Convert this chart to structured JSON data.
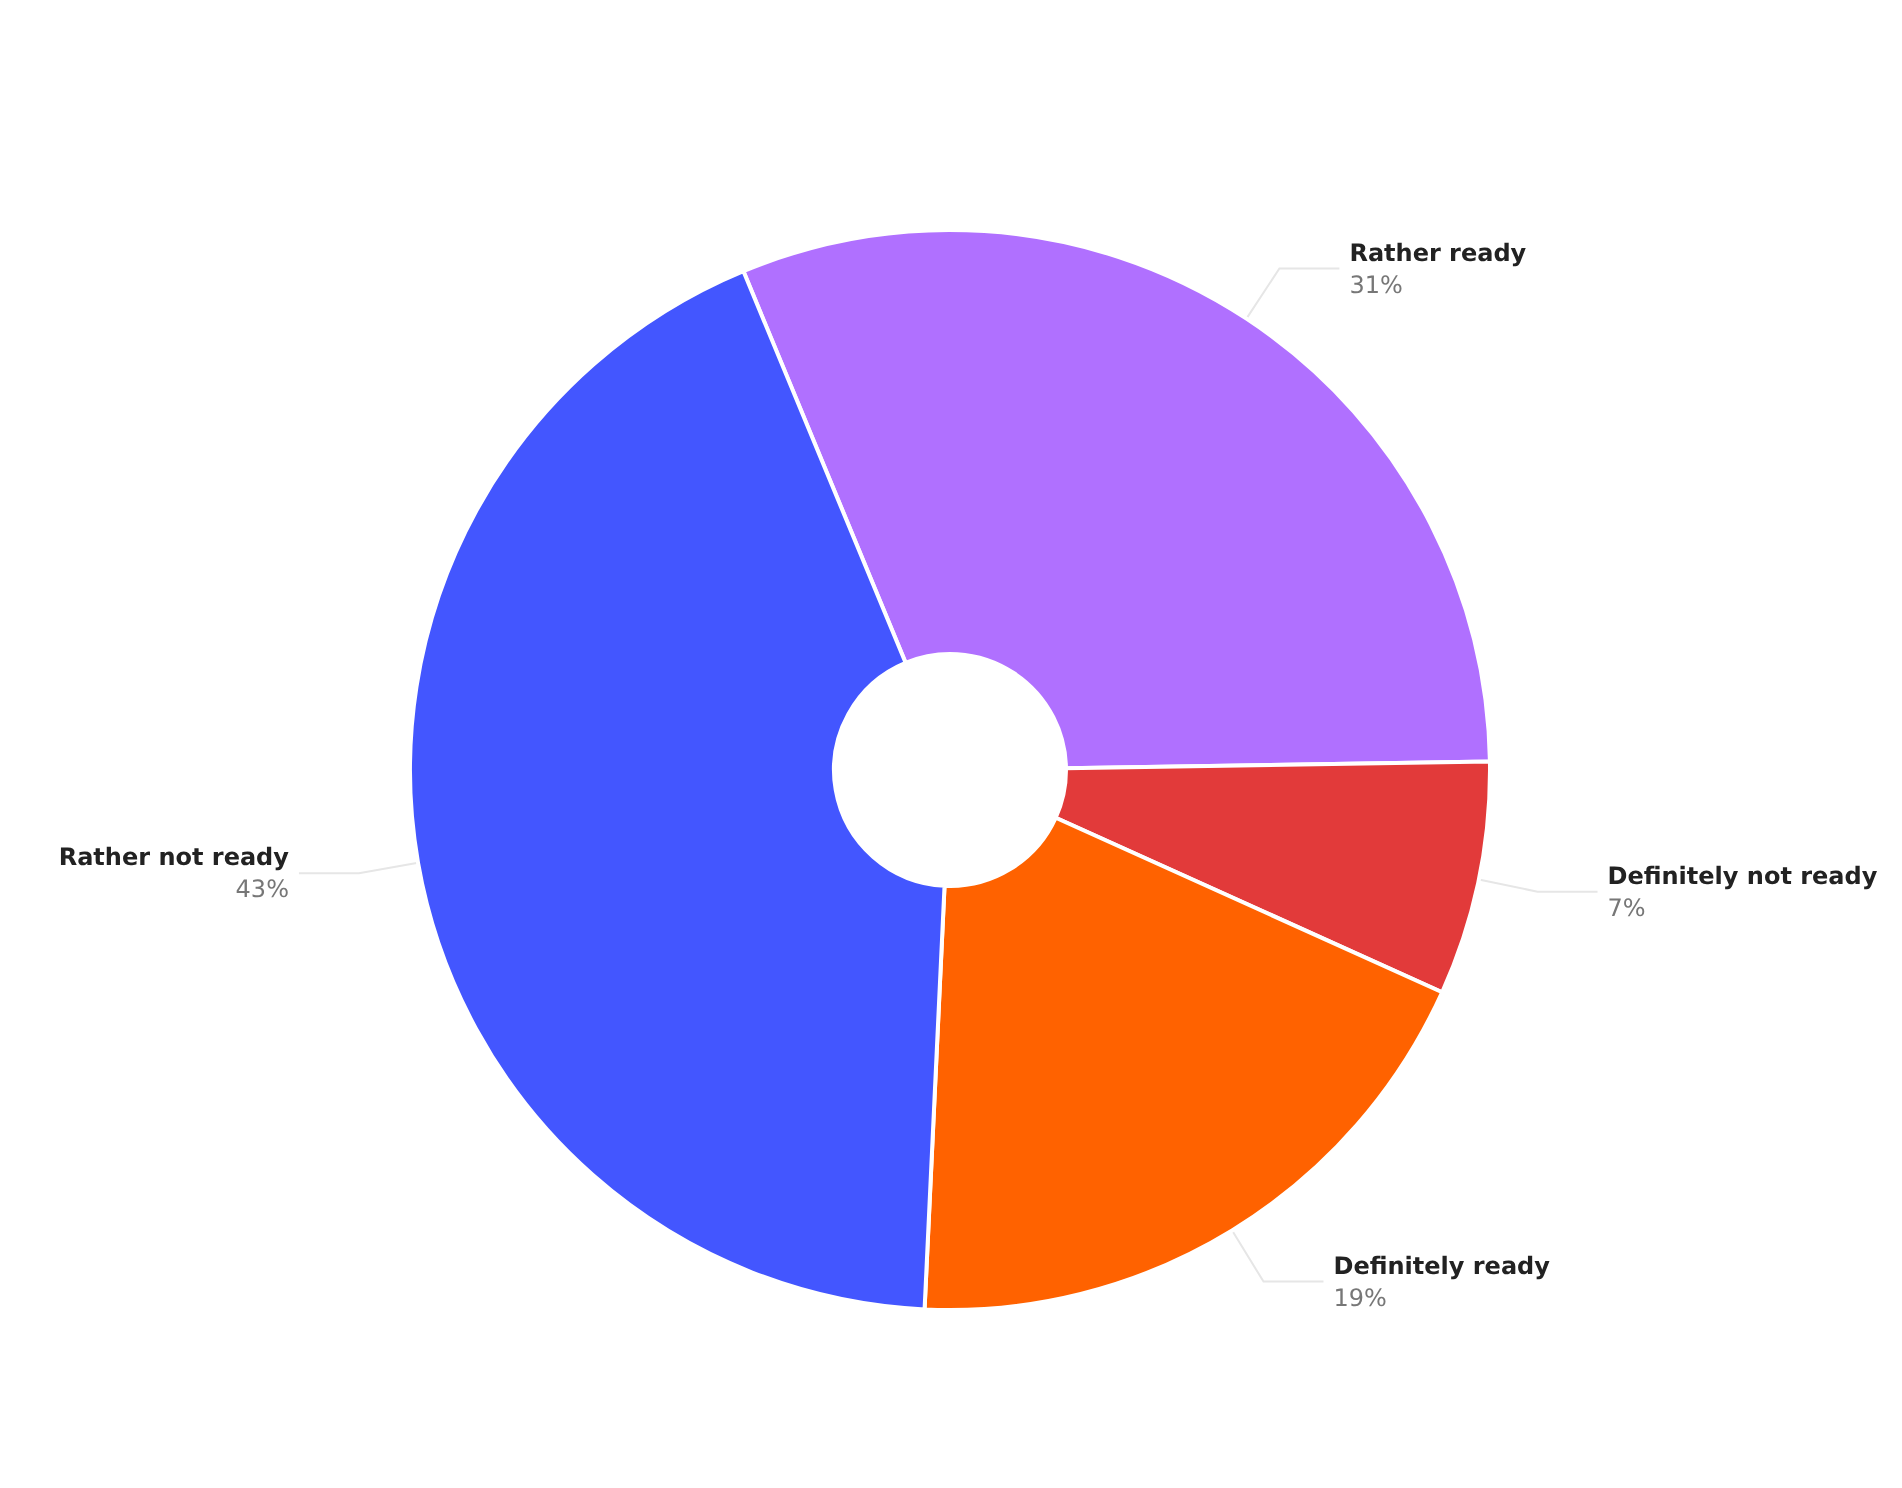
{
  "chart_data": {
    "type": "donut",
    "categories": [
      "Rather ready",
      "Definitely not ready",
      "Definitely ready",
      "Rather not ready"
    ],
    "values": [
      31,
      7,
      19,
      43
    ],
    "colors": [
      "#b070ff",
      "#e23a3a",
      "#ff6200",
      "#4356ff"
    ],
    "legend": false,
    "value_labels": [
      "31%",
      "7%",
      "19%",
      "43%"
    ]
  }
}
